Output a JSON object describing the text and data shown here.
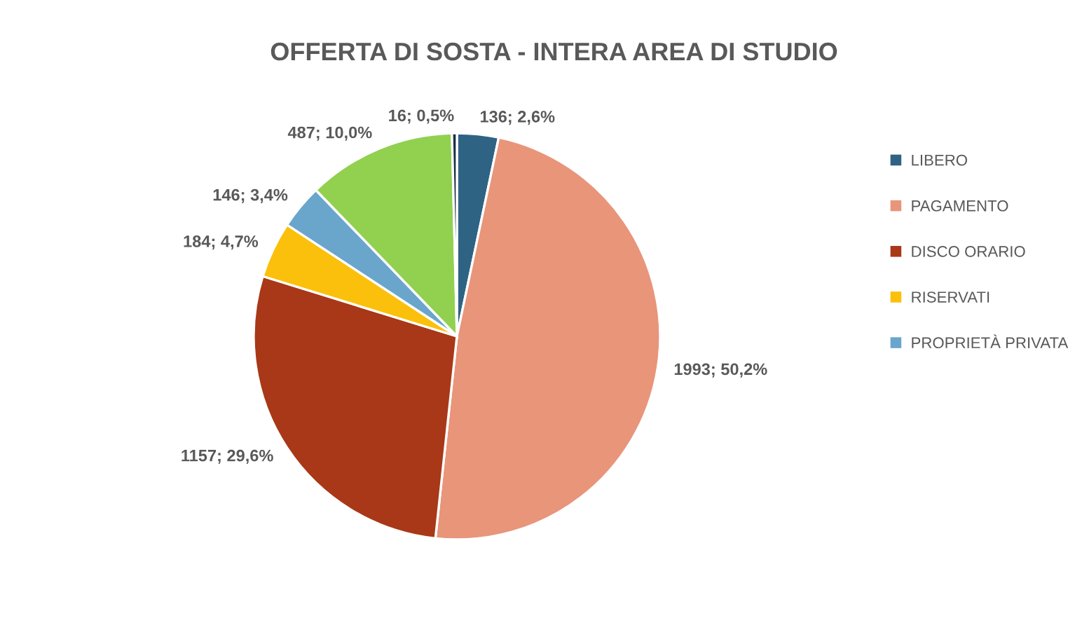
{
  "chart_data": {
    "type": "pie",
    "title": "OFFERTA DI SOSTA - INTERA AREA DI STUDIO",
    "categories": [
      "LIBERO",
      "PAGAMENTO",
      "DISCO ORARIO",
      "RISERVATI",
      "PROPRIETÀ PRIVATA",
      null,
      null
    ],
    "values": [
      136,
      1993,
      1157,
      184,
      146,
      487,
      16
    ],
    "colors": [
      "#2e6384",
      "#e8957a",
      "#a83817",
      "#fbc00b",
      "#6aa6cc",
      "#92d050",
      "#1b2f45"
    ],
    "value_labels": [
      "136; 2,6%",
      "1993; 50,2%",
      "1157; 29,6%",
      "184; 4,7%",
      "146; 3,4%",
      "487; 10,0%",
      "16; 0,5%"
    ],
    "legend": "right"
  }
}
